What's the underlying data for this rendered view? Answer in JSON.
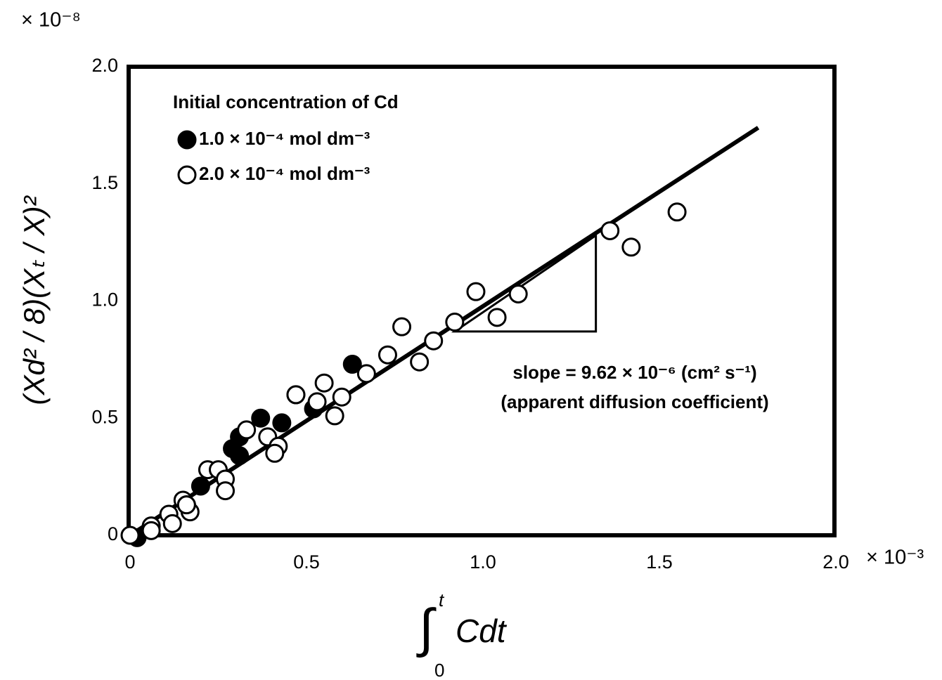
{
  "chart_data": {
    "type": "scatter",
    "ylabel": "(Xd² / 8)(Xₜ / X)²",
    "y_multiplier": "× 10⁻⁸",
    "x_multiplier": "× 10⁻³",
    "xlabel_symbol": "∫",
    "xlabel_upper": "t",
    "xlabel_lower": "0",
    "xlabel_integrand": "Cdt",
    "legend_title": "Initial concentration of Cd",
    "legend": "upper left",
    "grid": false,
    "xlim": [
      0,
      2.0
    ],
    "ylim": [
      0,
      2.0
    ],
    "xticks": [
      0,
      0.5,
      {
        "value": 1,
        "label": "1.0"
      },
      1.5,
      {
        "value": 2,
        "label": "2.0"
      }
    ],
    "yticks": [
      0,
      0.5,
      {
        "value": 1,
        "label": "1.0"
      },
      1.5,
      {
        "value": 2,
        "label": "2.0"
      }
    ],
    "series": [
      {
        "name": "1.0 × 10⁻⁴ mol dm⁻³",
        "color": "#000000",
        "x": [
          0.02,
          0.2,
          0.29,
          0.31,
          0.31,
          0.37,
          0.43,
          0.52,
          0.47,
          0.63
        ],
        "values": [
          -0.01,
          0.21,
          0.37,
          0.42,
          0.34,
          0.5,
          0.48,
          0.54,
          0.6,
          0.73
        ]
      },
      {
        "name": "2.0 × 10⁻⁴ mol dm⁻³",
        "color": "#ffffff",
        "x": [
          0,
          0.06,
          0.06,
          0.11,
          0.12,
          0.15,
          0.16,
          0.17,
          0.16,
          0.22,
          0.25,
          0.27,
          0.27,
          0.33,
          0.39,
          0.42,
          0.41,
          0.47,
          0.53,
          0.55,
          0.6,
          0.58,
          0.67,
          0.73,
          0.77,
          0.82,
          0.86,
          0.92,
          0.98,
          1.04,
          1.1,
          1.36,
          1.42,
          1.55
        ],
        "values": [
          0,
          0.04,
          0.02,
          0.09,
          0.05,
          0.15,
          0.13,
          0.1,
          0.13,
          0.28,
          0.28,
          0.24,
          0.19,
          0.45,
          0.42,
          0.38,
          0.35,
          0.6,
          0.57,
          0.65,
          0.59,
          0.51,
          0.69,
          0.77,
          0.89,
          0.74,
          0.83,
          0.91,
          1.04,
          0.93,
          1.03,
          1.3,
          1.23,
          1.38
        ]
      }
    ],
    "fit_line": {
      "x": [
        0,
        1.78
      ],
      "y": [
        0,
        1.74
      ]
    },
    "slope_triangle": {
      "x": [
        0.92,
        1.32,
        1.32
      ],
      "y": [
        0.87,
        0.87,
        1.28
      ]
    },
    "annotation_1": "slope = 9.62 × 10⁻⁶ (cm² s⁻¹)",
    "annotation_2": "(apparent diffusion coefficient)"
  }
}
